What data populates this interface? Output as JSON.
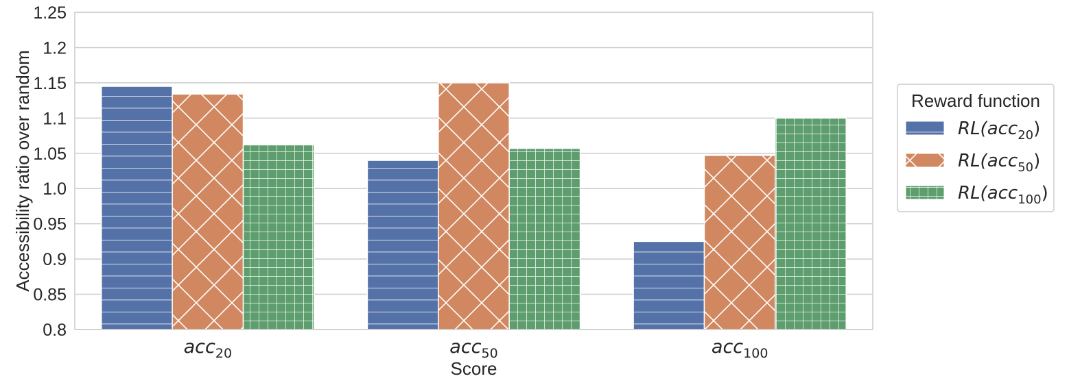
{
  "chart_data": {
    "type": "bar",
    "categories": [
      {
        "base": "acc",
        "sub": "20"
      },
      {
        "base": "acc",
        "sub": "50"
      },
      {
        "base": "acc",
        "sub": "100"
      }
    ],
    "xlabel": "Score",
    "ylabel": "Accessibility ratio over random",
    "ylim": [
      0.8,
      1.25
    ],
    "yticks": [
      "0.8",
      "0.85",
      "0.9",
      "0.95",
      "1.0",
      "1.05",
      "1.1",
      "1.15",
      "1.2",
      "1.25"
    ],
    "grid": true,
    "legend": {
      "title": "Reward function",
      "placement": "right"
    },
    "series": [
      {
        "name": {
          "pre": "RL(",
          "base": "acc",
          "sub": "20",
          "post": ")"
        },
        "color": "#5471a8",
        "hatch": "horizontal",
        "values": [
          1.145,
          1.04,
          0.925
        ]
      },
      {
        "name": {
          "pre": "RL(",
          "base": "acc",
          "sub": "50",
          "post": ")"
        },
        "color": "#d18860",
        "hatch": "cross-diagonal",
        "values": [
          1.134,
          1.15,
          1.047
        ]
      },
      {
        "name": {
          "pre": "RL(",
          "base": "acc",
          "sub": "100",
          "post": ")"
        },
        "color": "#5e9e6e",
        "hatch": "grid",
        "values": [
          1.062,
          1.057,
          1.1
        ]
      }
    ]
  }
}
